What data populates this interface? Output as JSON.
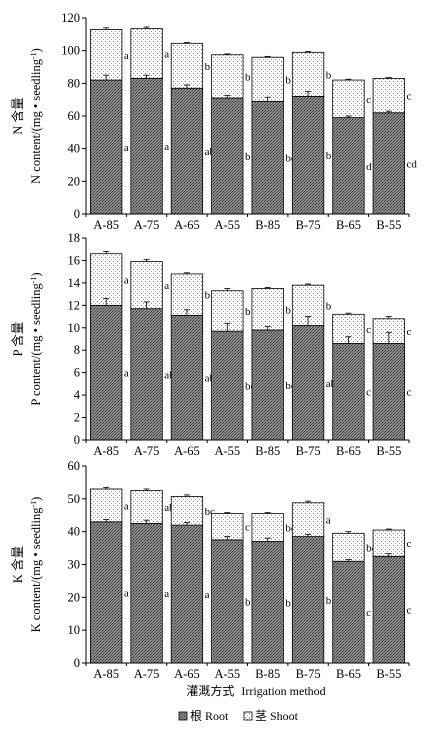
{
  "chart_data": [
    {
      "type": "bar",
      "stacked": true,
      "categories": [
        "A-85",
        "A-75",
        "A-65",
        "A-55",
        "B-85",
        "B-75",
        "B-65",
        "B-55"
      ],
      "ylabel_cn": "N 含量",
      "ylabel_en": "N content/(mg • seedling",
      "ylabel_sup": "-1",
      "ylabel_close": ")",
      "ylim": [
        0,
        120
      ],
      "yticks": [
        0,
        20,
        40,
        60,
        80,
        100,
        120
      ],
      "series": [
        {
          "name": "根 Root",
          "values": [
            82,
            83,
            77,
            71,
            69,
            72,
            59,
            62
          ],
          "errors": [
            3,
            2,
            2,
            1.5,
            2.5,
            3,
            1,
            1
          ],
          "sig": [
            "a",
            "a",
            "ab",
            "b",
            "bc",
            "b",
            "d",
            "cd"
          ]
        },
        {
          "name": "茎 Shoot",
          "values": [
            31,
            30.5,
            27.5,
            26.5,
            27,
            27,
            23,
            21
          ],
          "errors": [
            1,
            1,
            0.5,
            0.5,
            0.5,
            0.5,
            0.5,
            0.5
          ],
          "sig": [
            "a",
            "a",
            "b",
            "b",
            "b",
            "b",
            "c",
            "c"
          ]
        }
      ]
    },
    {
      "type": "bar",
      "stacked": true,
      "categories": [
        "A-85",
        "A-75",
        "A-65",
        "A-55",
        "B-85",
        "B-75",
        "B-65",
        "B-55"
      ],
      "ylabel_cn": "P 含量",
      "ylabel_en": "P content/(mg • seedling",
      "ylabel_sup": "-1",
      "ylabel_close": ")",
      "ylim": [
        0,
        18
      ],
      "yticks": [
        0,
        2,
        4,
        6,
        8,
        10,
        12,
        14,
        16,
        18
      ],
      "series": [
        {
          "name": "根 Root",
          "values": [
            12,
            11.7,
            11.1,
            9.7,
            9.8,
            10.2,
            8.6,
            8.6
          ],
          "errors": [
            0.6,
            0.6,
            0.5,
            0.7,
            0.3,
            0.8,
            0.6,
            1.0
          ],
          "sig": [
            "a",
            "ab",
            "ab",
            "bc",
            "bc",
            "ab",
            "c",
            "c"
          ]
        },
        {
          "name": "茎 Shoot",
          "values": [
            4.6,
            4.2,
            3.7,
            3.6,
            3.7,
            3.6,
            2.6,
            2.2
          ],
          "errors": [
            0.2,
            0.2,
            0.1,
            0.2,
            0.1,
            0.1,
            0.1,
            0.2
          ],
          "sig": [
            "a",
            "a",
            "b",
            "b",
            "b",
            "b",
            "c",
            "c"
          ]
        }
      ]
    },
    {
      "type": "bar",
      "stacked": true,
      "categories": [
        "A-85",
        "A-75",
        "A-65",
        "A-55",
        "B-85",
        "B-75",
        "B-65",
        "B-55"
      ],
      "ylabel_cn": "K 含量",
      "ylabel_en": "K content/(mg • seedling",
      "ylabel_sup": "-1",
      "ylabel_close": ")",
      "ylim": [
        0,
        60
      ],
      "yticks": [
        0,
        10,
        20,
        30,
        40,
        50,
        60
      ],
      "xlabel_cn": "灌溉方式",
      "xlabel_en": "Irrigation method",
      "series": [
        {
          "name": "根 Root",
          "values": [
            43,
            42.5,
            42,
            37.5,
            37,
            38.5,
            31,
            32.5
          ],
          "errors": [
            0.7,
            1.0,
            0.8,
            1.0,
            1.0,
            0.7,
            0.5,
            0.8
          ],
          "sig": [
            "a",
            "a",
            "a",
            "b",
            "b",
            "b",
            "c",
            "c"
          ]
        },
        {
          "name": "茎 Shoot",
          "values": [
            10,
            10,
            8.7,
            8,
            8.5,
            10.3,
            8.5,
            8
          ],
          "errors": [
            0.5,
            0.5,
            0.5,
            0.3,
            0.3,
            0.5,
            0.5,
            0.3
          ],
          "sig": [
            "a",
            "ab",
            "bc",
            "c",
            "bc",
            "a",
            "bc",
            "c"
          ]
        }
      ]
    }
  ],
  "legend": [
    {
      "label": "根 Root",
      "pattern": "crosshatch"
    },
    {
      "label": "茎 Shoot",
      "pattern": "dots"
    }
  ],
  "colors": {
    "axis": "#000000",
    "bar_edge": "#000000",
    "background": "#ffffff"
  }
}
